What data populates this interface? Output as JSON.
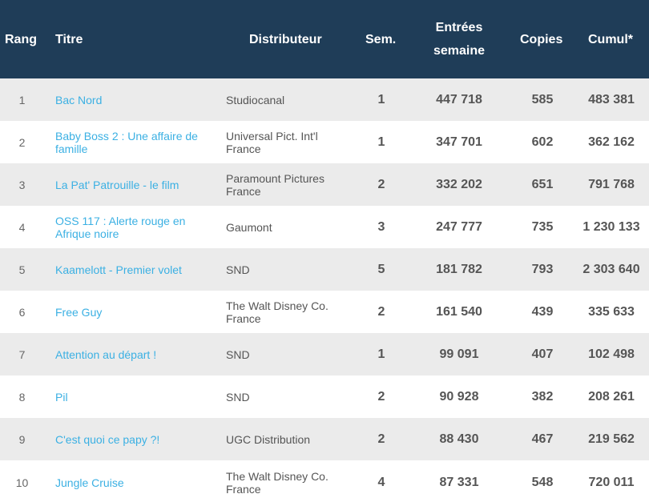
{
  "header": {
    "rang": "Rang",
    "titre": "Titre",
    "distributeur": "Distributeur",
    "sem": "Sem.",
    "entrees_line1": "Entrées",
    "entrees_line2": "semaine",
    "copies": "Copies",
    "cumul": "Cumul*"
  },
  "colors": {
    "header_bg": "#1f3d58",
    "link": "#3bb0e3",
    "row_alt": "#ebebeb"
  },
  "rows": [
    {
      "rang": "1",
      "titre": "Bac Nord",
      "distributeur": "Studiocanal",
      "sem": "1",
      "entrees": "447 718",
      "copies": "585",
      "cumul": "483 381"
    },
    {
      "rang": "2",
      "titre": "Baby Boss 2 : Une affaire de famille",
      "distributeur": "Universal Pict. Int'l France",
      "sem": "1",
      "entrees": "347 701",
      "copies": "602",
      "cumul": "362 162"
    },
    {
      "rang": "3",
      "titre": "La Pat' Patrouille - le film",
      "distributeur": "Paramount Pictures France",
      "sem": "2",
      "entrees": "332 202",
      "copies": "651",
      "cumul": "791 768"
    },
    {
      "rang": "4",
      "titre": "OSS 117 : Alerte rouge en Afrique noire",
      "distributeur": "Gaumont",
      "sem": "3",
      "entrees": "247 777",
      "copies": "735",
      "cumul": "1 230 133"
    },
    {
      "rang": "5",
      "titre": "Kaamelott - Premier volet",
      "distributeur": "SND",
      "sem": "5",
      "entrees": "181 782",
      "copies": "793",
      "cumul": "2 303 640"
    },
    {
      "rang": "6",
      "titre": "Free Guy",
      "distributeur": "The Walt Disney Co. France",
      "sem": "2",
      "entrees": "161 540",
      "copies": "439",
      "cumul": "335 633"
    },
    {
      "rang": "7",
      "titre": "Attention au départ !",
      "distributeur": "SND",
      "sem": "1",
      "entrees": "99 091",
      "copies": "407",
      "cumul": "102 498"
    },
    {
      "rang": "8",
      "titre": "Pil",
      "distributeur": "SND",
      "sem": "2",
      "entrees": "90 928",
      "copies": "382",
      "cumul": "208 261"
    },
    {
      "rang": "9",
      "titre": "C'est quoi ce papy ?!",
      "distributeur": "UGC Distribution",
      "sem": "2",
      "entrees": "88 430",
      "copies": "467",
      "cumul": "219 562"
    },
    {
      "rang": "10",
      "titre": "Jungle Cruise",
      "distributeur": "The Walt Disney Co. France",
      "sem": "4",
      "entrees": "87 331",
      "copies": "548",
      "cumul": "720 011"
    }
  ]
}
